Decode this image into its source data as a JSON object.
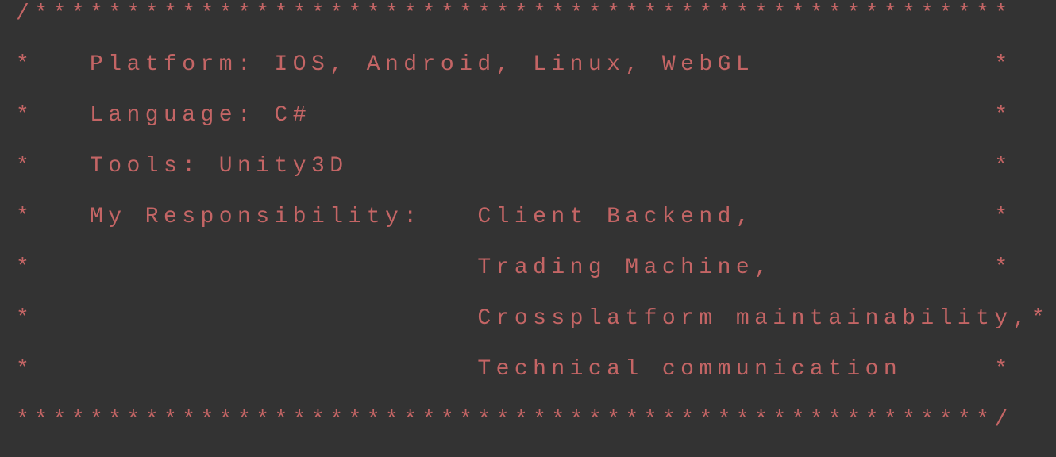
{
  "comment_block": {
    "lines": [
      "/*****************************************************",
      "*   Platform: IOS, Android, Linux, WebGL             *",
      "*   Language: C#                                     *",
      "*   Tools: Unity3D                                   *",
      "*   My Responsibility:   Client Backend,             *",
      "*                        Trading Machine,            *",
      "*                        Crossplatform maintainability,*",
      "*                        Technical communication     *",
      "*****************************************************/"
    ]
  },
  "colors": {
    "background": "#333333",
    "text": "#c46565"
  }
}
